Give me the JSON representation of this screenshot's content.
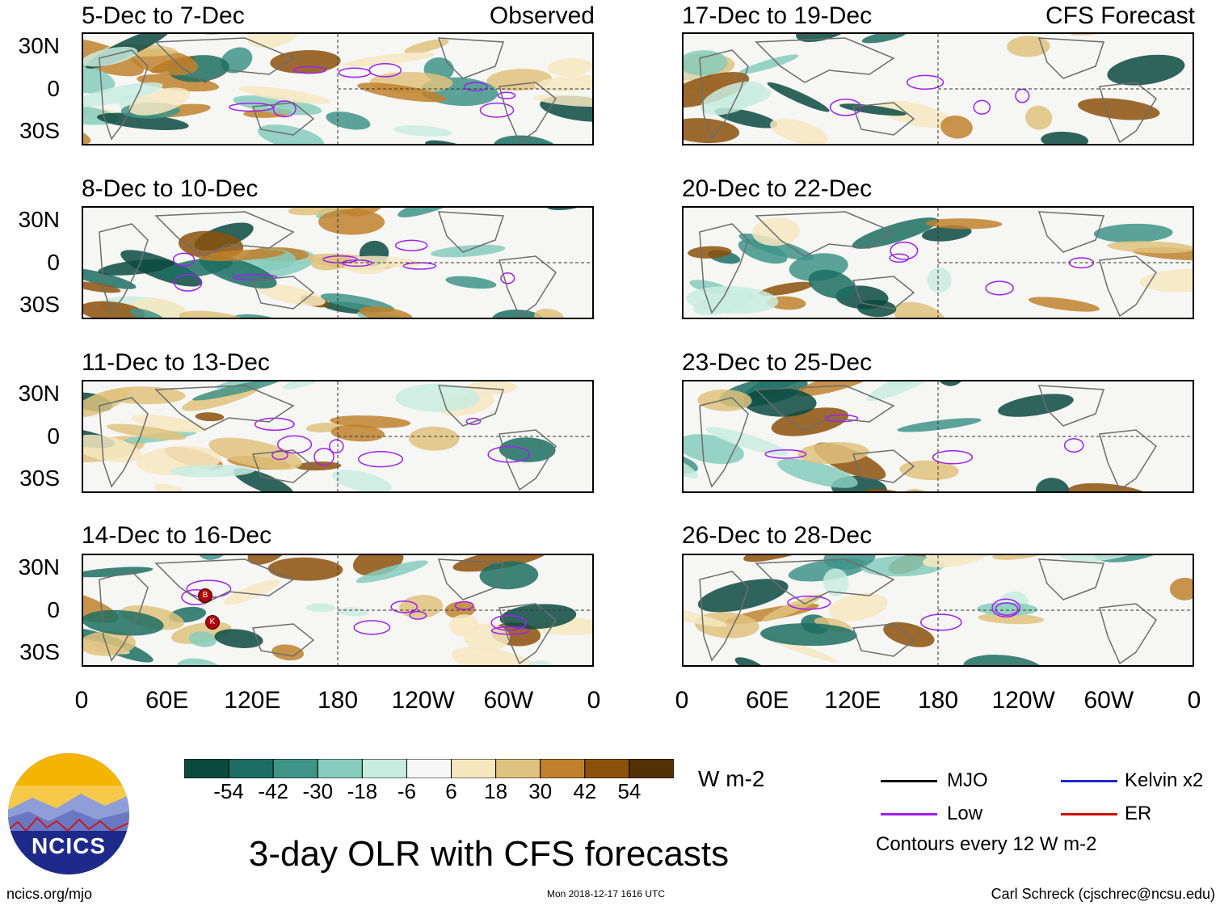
{
  "panels_left": [
    {
      "period": "5-Dec to 7-Dec",
      "source": "Observed"
    },
    {
      "period": "8-Dec to 10-Dec",
      "source": ""
    },
    {
      "period": "11-Dec to 13-Dec",
      "source": ""
    },
    {
      "period": "14-Dec to 16-Dec",
      "source": ""
    }
  ],
  "panels_right": [
    {
      "period": "17-Dec to 19-Dec",
      "source": "CFS Forecast"
    },
    {
      "period": "20-Dec to 22-Dec",
      "source": ""
    },
    {
      "period": "23-Dec to 25-Dec",
      "source": ""
    },
    {
      "period": "26-Dec to 28-Dec",
      "source": ""
    }
  ],
  "lat_labels": [
    "30N",
    "0",
    "30S"
  ],
  "lon_labels": [
    "0",
    "60E",
    "120E",
    "180",
    "120W",
    "60W",
    "0"
  ],
  "storm_markers": [
    "B",
    "K"
  ],
  "colorbar": {
    "ticks": [
      "-54",
      "-42",
      "-30",
      "-18",
      "-6",
      "6",
      "18",
      "30",
      "42",
      "54"
    ],
    "colors": [
      "#0b4a3f",
      "#1c6e62",
      "#3f9488",
      "#86cdbb",
      "#c9ece1",
      "#f7f7f7",
      "#f6e7c1",
      "#dfc27d",
      "#bf812d",
      "#8c510a",
      "#543005"
    ],
    "unit": "W m-2"
  },
  "legend": {
    "mjo": {
      "label": "MJO",
      "color": "#000000"
    },
    "kelvin": {
      "label": "Kelvin x2",
      "color": "#1a2bd6"
    },
    "low": {
      "label": "Low",
      "color": "#a020f0"
    },
    "er": {
      "label": "ER",
      "color": "#cc1100"
    },
    "note": "Contours every 12 W m-2"
  },
  "logo": {
    "text": "NCICS"
  },
  "title": "3-day OLR with CFS forecasts",
  "footer": {
    "url": "ncics.org/mjo",
    "timestamp": "Mon 2018-12-17 1616 UTC",
    "credit": "Carl Schreck (cjschrec@ncsu.edu)"
  }
}
